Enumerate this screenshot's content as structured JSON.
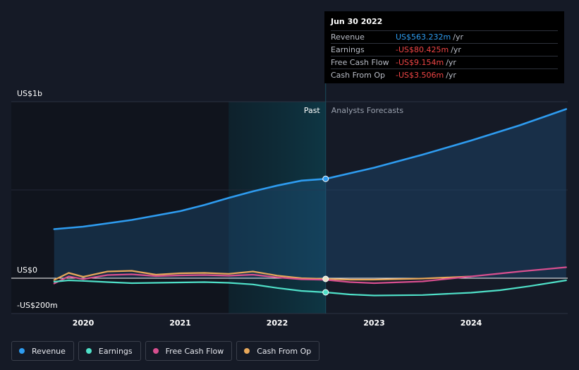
{
  "tooltip": {
    "date": "Jun 30 2022",
    "rows": [
      {
        "label": "Revenue",
        "value": "US$563.232m",
        "unit": "/yr",
        "color": "#2e9cf0"
      },
      {
        "label": "Earnings",
        "value": "-US$80.425m",
        "unit": "/yr",
        "color": "#f04545"
      },
      {
        "label": "Free Cash Flow",
        "value": "-US$9.154m",
        "unit": "/yr",
        "color": "#f04545"
      },
      {
        "label": "Cash From Op",
        "value": "-US$3.506m",
        "unit": "/yr",
        "color": "#f04545"
      }
    ]
  },
  "legend": [
    {
      "label": "Revenue",
      "color": "#2e9cf0"
    },
    {
      "label": "Earnings",
      "color": "#4fe0c8"
    },
    {
      "label": "Free Cash Flow",
      "color": "#d84f8f"
    },
    {
      "label": "Cash From Op",
      "color": "#e8a85a"
    }
  ],
  "chart_data": {
    "type": "line",
    "unit": "US$ millions",
    "y_labels": [
      "US$1b",
      "US$0",
      "-US$200m"
    ],
    "ylim": [
      -200,
      1000
    ],
    "xlim": [
      2019.5,
      2024.98
    ],
    "x_ticks": [
      2020,
      2021,
      2022,
      2023,
      2024
    ],
    "x_tick_labels": [
      "2020",
      "2021",
      "2022",
      "2023",
      "2024"
    ],
    "past_label": "Past",
    "forecast_label": "Analysts Forecasts",
    "divider_x": 2022.5,
    "highlight_start": 2021.5,
    "series": [
      {
        "name": "Revenue",
        "color": "#2e9cf0",
        "fill": true,
        "marker": true,
        "x": [
          2019.7,
          2020.0,
          2020.5,
          2021.0,
          2021.25,
          2021.5,
          2021.75,
          2022.0,
          2022.25,
          2022.5,
          2023.0,
          2023.5,
          2024.0,
          2024.5,
          2024.98
        ],
        "y": [
          278,
          292,
          330,
          380,
          415,
          455,
          492,
          525,
          553,
          563,
          626,
          700,
          780,
          866,
          958
        ],
        "forecast_from": 2022.5
      },
      {
        "name": "Earnings",
        "color": "#4fe0c8",
        "marker": true,
        "x": [
          2019.7,
          2019.85,
          2020.0,
          2020.25,
          2020.5,
          2020.75,
          2021.0,
          2021.25,
          2021.5,
          2021.75,
          2022.0,
          2022.25,
          2022.5,
          2022.75,
          2023.0,
          2023.5,
          2024.0,
          2024.3,
          2024.6,
          2024.98
        ],
        "y": [
          -20,
          -12,
          -15,
          -22,
          -28,
          -26,
          -24,
          -22,
          -26,
          -35,
          -55,
          -72,
          -80,
          -92,
          -98,
          -95,
          -82,
          -68,
          -45,
          -12
        ],
        "forecast_from": 2022.5
      },
      {
        "name": "Free Cash Flow",
        "color": "#d84f8f",
        "x": [
          2019.7,
          2019.85,
          2020.0,
          2020.25,
          2020.5,
          2020.75,
          2021.0,
          2021.25,
          2021.5,
          2021.75,
          2022.0,
          2022.25,
          2022.5,
          2022.75,
          2023.0,
          2023.5,
          2024.0,
          2024.5,
          2024.98
        ],
        "y": [
          -30,
          10,
          -5,
          18,
          22,
          12,
          16,
          18,
          14,
          20,
          5,
          -6,
          -9,
          -22,
          -28,
          -18,
          10,
          38,
          62
        ],
        "forecast_from": 2022.5
      },
      {
        "name": "Cash From Op",
        "color": "#e8a85a",
        "x": [
          2019.7,
          2019.85,
          2020.0,
          2020.25,
          2020.5,
          2020.75,
          2021.0,
          2021.25,
          2021.5,
          2021.75,
          2022.0,
          2022.25,
          2022.5,
          2022.75,
          2023.0,
          2023.5,
          2024.0
        ],
        "y": [
          -10,
          30,
          8,
          38,
          42,
          20,
          28,
          30,
          25,
          38,
          15,
          0,
          -4,
          -8,
          -8,
          -2,
          10
        ],
        "forecast_from": 2022.5
      }
    ]
  }
}
